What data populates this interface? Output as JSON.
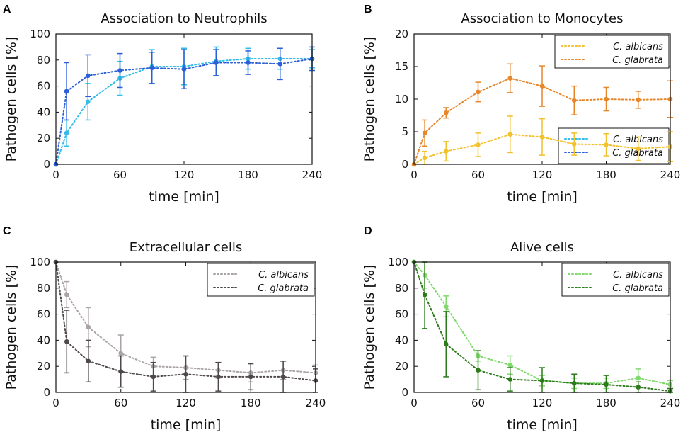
{
  "chart_data": [
    {
      "panel": "A",
      "type": "line",
      "title": "Association to Neutrophils",
      "xlabel": "time [min]",
      "ylabel": "Pathogen cells [%]",
      "xlim": [
        0,
        240
      ],
      "ylim": [
        0,
        100
      ],
      "xticks": [
        0,
        60,
        120,
        180,
        240
      ],
      "yticks": [
        0,
        20,
        40,
        60,
        80,
        100
      ],
      "legend": "bottom-right",
      "series": [
        {
          "name": "C. albicans",
          "color": "#33bde8",
          "x": [
            0,
            10,
            30,
            60,
            90,
            120,
            150,
            180,
            210,
            240
          ],
          "values": [
            0,
            24,
            48,
            66,
            75,
            75,
            79,
            81,
            81,
            81
          ],
          "errors": [
            0,
            10,
            14,
            13,
            13,
            14,
            11,
            8,
            8,
            7
          ]
        },
        {
          "name": "C. glabrata",
          "color": "#2a5fd6",
          "x": [
            0,
            10,
            30,
            60,
            90,
            120,
            150,
            180,
            210,
            240
          ],
          "values": [
            0,
            56,
            68,
            72,
            74,
            73,
            78,
            78,
            77,
            81
          ],
          "errors": [
            0,
            22,
            16,
            13,
            12,
            15,
            10,
            9,
            12,
            9
          ]
        }
      ]
    },
    {
      "panel": "B",
      "type": "line",
      "title": "Association to Monocytes",
      "xlabel": "time [min]",
      "ylabel": "Pathogen cells [%]",
      "xlim": [
        0,
        240
      ],
      "ylim": [
        0,
        20
      ],
      "xticks": [
        0,
        60,
        120,
        180,
        240
      ],
      "yticks": [
        0,
        5,
        10,
        15,
        20
      ],
      "legend": "top-right",
      "series": [
        {
          "name": "C. albicans",
          "color": "#f2c12e",
          "x": [
            0,
            10,
            30,
            60,
            90,
            120,
            150,
            180,
            210,
            240
          ],
          "values": [
            0,
            1,
            2,
            3,
            4.6,
            4.2,
            3.1,
            3,
            2.4,
            2.7
          ],
          "errors": [
            0,
            1,
            1.5,
            1.8,
            2.8,
            2.8,
            1.7,
            1.7,
            1.8,
            2.3
          ]
        },
        {
          "name": "C. glabrata",
          "color": "#e8862a",
          "x": [
            0,
            10,
            30,
            60,
            90,
            120,
            150,
            180,
            210,
            240
          ],
          "values": [
            0,
            4.8,
            7.9,
            11.1,
            13.2,
            12,
            9.8,
            10,
            9.9,
            10
          ],
          "errors": [
            0,
            2,
            0.8,
            1.5,
            2.2,
            3.1,
            2.2,
            1.8,
            1.3,
            2.8
          ]
        }
      ]
    },
    {
      "panel": "C",
      "type": "line",
      "title": "Extracellular cells",
      "xlabel": "time [min]",
      "ylabel": "Pathogen cells [%]",
      "xlim": [
        0,
        240
      ],
      "ylim": [
        0,
        100
      ],
      "xticks": [
        0,
        60,
        120,
        180,
        240
      ],
      "yticks": [
        0,
        20,
        40,
        60,
        80,
        100
      ],
      "legend": "top-right",
      "series": [
        {
          "name": "C. albicans",
          "color": "#aaa3a3",
          "x": [
            0,
            10,
            30,
            60,
            90,
            120,
            150,
            180,
            210,
            240
          ],
          "values": [
            100,
            75,
            50,
            30,
            20,
            19,
            17,
            15,
            17,
            15
          ],
          "errors": [
            0,
            10,
            15,
            14,
            7,
            9,
            6,
            7,
            7,
            6
          ]
        },
        {
          "name": "C. glabrata",
          "color": "#4f4848",
          "x": [
            0,
            10,
            30,
            60,
            90,
            120,
            150,
            180,
            210,
            240
          ],
          "values": [
            100,
            39,
            24,
            16,
            12,
            14,
            12,
            12,
            12,
            9
          ],
          "errors": [
            0,
            24,
            16,
            12,
            11,
            14,
            11,
            10,
            12,
            9
          ]
        }
      ]
    },
    {
      "panel": "D",
      "type": "line",
      "title": "Alive cells",
      "xlabel": "time [min]",
      "ylabel": "Pathogen cells [%]",
      "xlim": [
        0,
        240
      ],
      "ylim": [
        0,
        100
      ],
      "xticks": [
        0,
        60,
        120,
        180,
        240
      ],
      "yticks": [
        0,
        20,
        40,
        60,
        80,
        100
      ],
      "legend": "top-right",
      "series": [
        {
          "name": "C. albicans",
          "color": "#7fd96b",
          "x": [
            0,
            10,
            30,
            60,
            90,
            120,
            150,
            180,
            210,
            240
          ],
          "values": [
            100,
            90,
            66,
            28,
            21,
            9,
            7,
            7,
            11,
            6
          ],
          "errors": [
            0,
            10,
            8,
            4,
            7,
            4,
            4,
            4,
            7,
            3
          ]
        },
        {
          "name": "C. glabrata",
          "color": "#2c7a1c",
          "x": [
            0,
            10,
            30,
            60,
            90,
            120,
            150,
            180,
            210,
            240
          ],
          "values": [
            100,
            75,
            37,
            17,
            10,
            9,
            7,
            6,
            4,
            1
          ],
          "errors": [
            0,
            26,
            25,
            15,
            9,
            10,
            7,
            7,
            4,
            2
          ]
        }
      ]
    }
  ]
}
